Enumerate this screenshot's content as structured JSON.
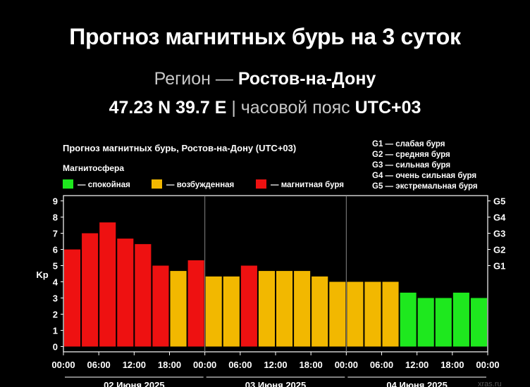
{
  "header": {
    "title": "Прогноз магнитных бурь на 3 суток",
    "region_label": "Регион — ",
    "region_name": "Ростов-на-Дону",
    "coords": "47.23 N 39.7 E",
    "timezone_label": " | часовой пояс ",
    "timezone": "UTC+03"
  },
  "watermark": "xras.ru",
  "colors": {
    "background": "#000000",
    "quiet": "#1ee81e",
    "active": "#f2b800",
    "storm": "#ee1111",
    "grid": "#888888"
  },
  "chart_data": {
    "type": "bar",
    "title": "Прогноз магнитных бурь, Ростов-на-Дону (UTC+03)",
    "legend_heading": "Магнитосфера",
    "legend": [
      {
        "label": "— спокойная",
        "color": "#1ee81e"
      },
      {
        "label": "— возбужденная",
        "color": "#f2b800"
      },
      {
        "label": "— магнитная буря",
        "color": "#ee1111"
      }
    ],
    "g_legend": [
      "G1 — слабая буря",
      "G2 — средняя буря",
      "G3 — сильная буря",
      "G4 — очень сильная буря",
      "G5 — экстремальная буря"
    ],
    "ylabel": "Kp",
    "ylim": [
      0,
      9
    ],
    "yticks": [
      "0",
      "1",
      "2",
      "3",
      "4",
      "5",
      "6",
      "7",
      "8",
      "9"
    ],
    "g_levels": [
      {
        "label": "G1",
        "kp": 5
      },
      {
        "label": "G2",
        "kp": 6
      },
      {
        "label": "G3",
        "kp": 7
      },
      {
        "label": "G4",
        "kp": 8
      },
      {
        "label": "G5",
        "kp": 9
      }
    ],
    "xticks": [
      "00:00",
      "06:00",
      "12:00",
      "18:00",
      "00:00",
      "06:00",
      "12:00",
      "18:00",
      "00:00",
      "06:00",
      "12:00",
      "18:00",
      "00:00"
    ],
    "days": [
      "02 Июня 2025",
      "03 Июня 2025",
      "04 Июня 2025"
    ],
    "values": [
      6.0,
      7.0,
      7.67,
      6.67,
      6.33,
      5.0,
      4.67,
      5.33,
      4.33,
      4.33,
      5.0,
      4.67,
      4.67,
      4.67,
      4.33,
      4.0,
      4.0,
      4.0,
      4.0,
      3.33,
      3.0,
      3.0,
      3.33,
      3.0
    ],
    "levels": [
      "storm",
      "storm",
      "storm",
      "storm",
      "storm",
      "storm",
      "active",
      "storm",
      "active",
      "active",
      "storm",
      "active",
      "active",
      "active",
      "active",
      "active",
      "active",
      "active",
      "active",
      "quiet",
      "quiet",
      "quiet",
      "quiet",
      "quiet"
    ]
  }
}
